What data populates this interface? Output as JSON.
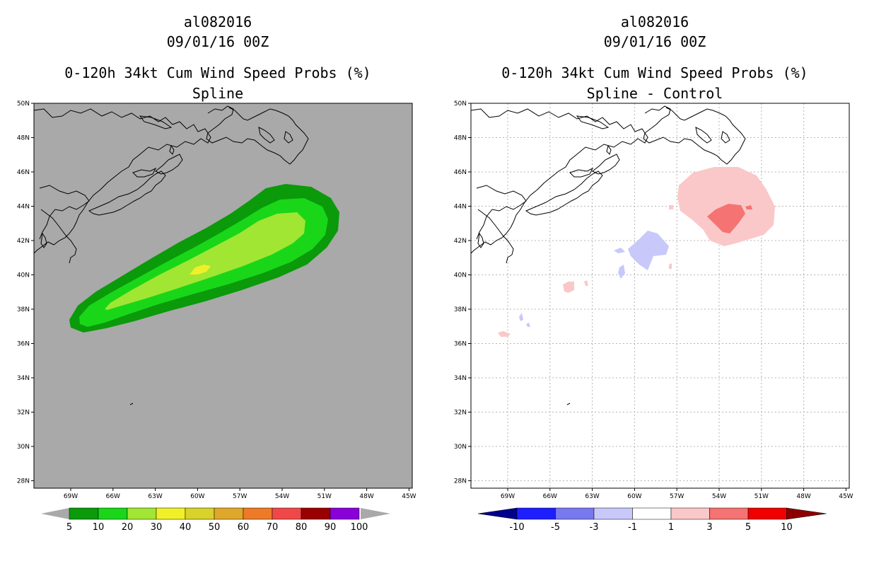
{
  "chart_data": [
    {
      "type": "map-contour",
      "storm_id": "al082016",
      "date": "09/01/16 00Z",
      "title": "0-120h 34kt Cum Wind Speed Probs (%)",
      "subtitle": "Spline",
      "lat_ticks": [
        "50N",
        "48N",
        "46N",
        "44N",
        "42N",
        "40N",
        "38N",
        "36N",
        "34N",
        "32N",
        "30N",
        "28N"
      ],
      "lon_ticks": [
        "69W",
        "66W",
        "63W",
        "60W",
        "57W",
        "54W",
        "51W",
        "48W",
        "45W"
      ],
      "background_color": "#a9a9a9",
      "grid": false,
      "colorbar": {
        "levels": [
          "5",
          "10",
          "20",
          "30",
          "40",
          "50",
          "60",
          "70",
          "80",
          "90",
          "100"
        ],
        "colors": [
          "#0a9a0a",
          "#19d619",
          "#a0e632",
          "#f0f028",
          "#d8d22a",
          "#e0a82a",
          "#ee7a28",
          "#f04848",
          "#9a0000",
          "#8a00d8"
        ],
        "extend_color": "#a9a9a9"
      },
      "contours": [
        {
          "level": "5",
          "color": "#0a9a0a"
        },
        {
          "level": "10",
          "color": "#19d619"
        },
        {
          "level": "20",
          "color": "#a0e632"
        },
        {
          "level": "30",
          "color": "#f0f028"
        }
      ]
    },
    {
      "type": "map-contour",
      "storm_id": "al082016",
      "date": "09/01/16 00Z",
      "title": "0-120h 34kt Cum Wind Speed Probs (%)",
      "subtitle": "Spline - Control",
      "lat_ticks": [
        "50N",
        "48N",
        "46N",
        "44N",
        "42N",
        "40N",
        "38N",
        "36N",
        "34N",
        "32N",
        "30N",
        "28N"
      ],
      "lon_ticks": [
        "69W",
        "66W",
        "63W",
        "60W",
        "57W",
        "54W",
        "51W",
        "48W",
        "45W"
      ],
      "background_color": "#ffffff",
      "grid": true,
      "colorbar": {
        "levels": [
          "-10",
          "-5",
          "-3",
          "-1",
          "1",
          "3",
          "5",
          "10"
        ],
        "colors": [
          "#00008c",
          "#1e1eff",
          "#7878f0",
          "#c8c8fa",
          "#ffffff",
          "#fac8c8",
          "#f57373",
          "#f00000",
          "#8c0000"
        ]
      },
      "contours": [
        {
          "level": "1",
          "color": "#fac8c8"
        },
        {
          "level": "3",
          "color": "#f57373"
        },
        {
          "level": "-1",
          "color": "#c8c8fa"
        }
      ]
    }
  ]
}
